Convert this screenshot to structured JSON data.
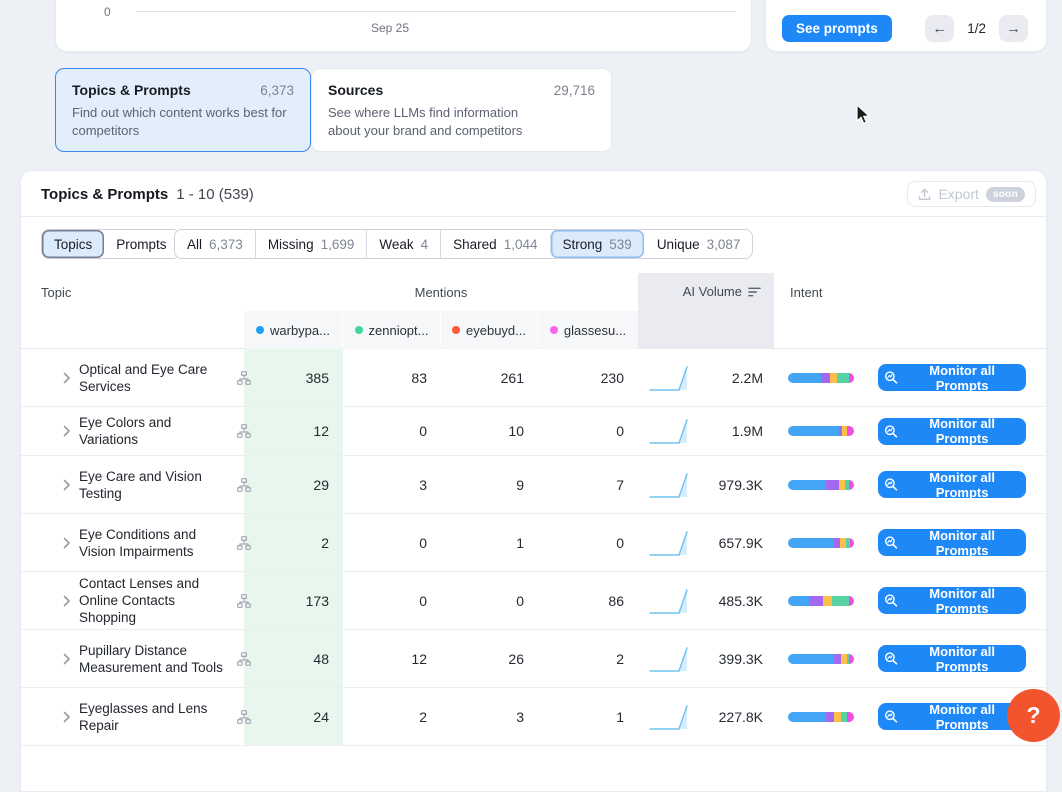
{
  "top": {
    "chart": {
      "y_zero": "0",
      "x_label": "Sep 25"
    },
    "see_prompts_label": "See prompts",
    "pager": {
      "prev": "←",
      "label": "1/2",
      "next": "→"
    }
  },
  "nav_cards": [
    {
      "title": "Topics & Prompts",
      "count": "6,373",
      "description": "Find out which content works best for competitors"
    },
    {
      "title": "Sources",
      "count": "29,716",
      "description": "See where LLMs find information about your brand and competitors"
    }
  ],
  "table": {
    "title": "Topics & Prompts",
    "range": "1 - 10 (539)",
    "export": {
      "label": "Export",
      "badge": "soon"
    },
    "view_toggle": [
      {
        "label": "Topics",
        "selected": true
      },
      {
        "label": "Prompts",
        "selected": false
      }
    ],
    "filters": [
      {
        "label": "All",
        "count": "6,373",
        "selected": false
      },
      {
        "label": "Missing",
        "count": "1,699",
        "selected": false
      },
      {
        "label": "Weak",
        "count": "4",
        "selected": false
      },
      {
        "label": "Shared",
        "count": "1,044",
        "selected": false
      },
      {
        "label": "Strong",
        "count": "539",
        "selected": true
      },
      {
        "label": "Unique",
        "count": "3,087",
        "selected": false
      }
    ],
    "columns": {
      "topic": "Topic",
      "mentions": "Mentions",
      "ai_volume": "AI Volume",
      "intent": "Intent"
    },
    "brands": [
      {
        "name": "warbypa...",
        "color": "#1ba0f2"
      },
      {
        "name": "zenniopt...",
        "color": "#41d69c"
      },
      {
        "name": "eyebuyd...",
        "color": "#fb5a35"
      },
      {
        "name": "glassesu...",
        "color": "#f866ef"
      }
    ],
    "intent_colors": [
      "#42a5f5",
      "#a368f0",
      "#fcbf49",
      "#57d3a3",
      "#ee4fe1"
    ],
    "monitor_label": "Monitor all Prompts",
    "rows": [
      {
        "topic": "Optical and Eye Care Services",
        "mentions": [
          "385",
          "83",
          "261",
          "230"
        ],
        "ai_volume": "2.2M",
        "intent": [
          50,
          13,
          12,
          17,
          8
        ]
      },
      {
        "topic": "Eye Colors and Variations",
        "mentions": [
          "12",
          "0",
          "10",
          "0"
        ],
        "ai_volume": "1.9M",
        "intent": [
          77,
          5,
          8,
          0,
          10
        ]
      },
      {
        "topic": "Eye Care and Vision Testing",
        "mentions": [
          "29",
          "3",
          "9",
          "7"
        ],
        "ai_volume": "979.3K",
        "intent": [
          58,
          20,
          8,
          7,
          7
        ]
      },
      {
        "topic": "Eye Conditions and Vision Impairments",
        "mentions": [
          "2",
          "0",
          "1",
          "0"
        ],
        "ai_volume": "657.9K",
        "intent": [
          70,
          9,
          9,
          6,
          6
        ]
      },
      {
        "topic": "Contact Lenses and Online Contacts Shopping",
        "mentions": [
          "173",
          "0",
          "0",
          "86"
        ],
        "ai_volume": "485.3K",
        "intent": [
          32,
          21,
          13,
          26,
          8
        ]
      },
      {
        "topic": "Pupillary Distance Measurement and Tools",
        "mentions": [
          "48",
          "12",
          "26",
          "2"
        ],
        "ai_volume": "399.3K",
        "intent": [
          70,
          10,
          9,
          4,
          7
        ]
      },
      {
        "topic": "Eyeglasses and Lens Repair",
        "mentions": [
          "24",
          "2",
          "3",
          "1"
        ],
        "ai_volume": "227.8K",
        "intent": [
          57,
          12,
          11,
          9,
          11
        ]
      }
    ]
  },
  "help_label": "?"
}
